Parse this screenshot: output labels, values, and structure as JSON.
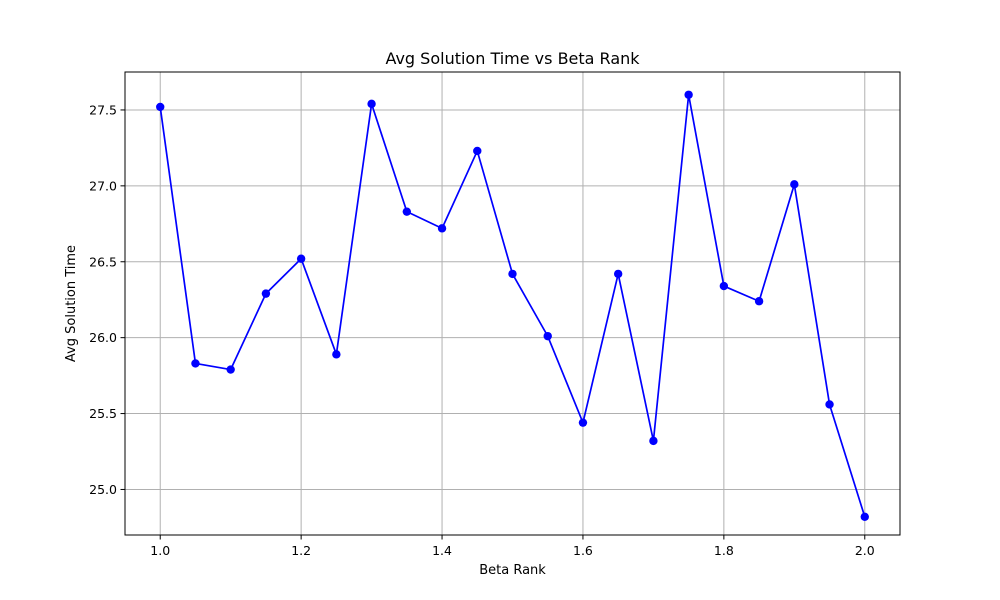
{
  "chart_data": {
    "type": "line",
    "title": "Avg Solution Time vs Beta Rank",
    "xlabel": "Beta Rank",
    "ylabel": "Avg Solution Time",
    "xlim": [
      0.95,
      2.05
    ],
    "ylim": [
      24.7,
      27.75
    ],
    "xticks": [
      1.0,
      1.2,
      1.4,
      1.6,
      1.8,
      2.0
    ],
    "xtick_labels": [
      "1.0",
      "1.2",
      "1.4",
      "1.6",
      "1.8",
      "2.0"
    ],
    "yticks": [
      25.0,
      25.5,
      26.0,
      26.5,
      27.0,
      27.5
    ],
    "ytick_labels": [
      "25.0",
      "25.5",
      "26.0",
      "26.5",
      "27.0",
      "27.5"
    ],
    "grid": true,
    "series": [
      {
        "color": "#0000ff",
        "marker": "circle",
        "x": [
          1.0,
          1.05,
          1.1,
          1.15,
          1.2,
          1.25,
          1.3,
          1.35,
          1.4,
          1.45,
          1.5,
          1.55,
          1.6,
          1.65,
          1.7,
          1.75,
          1.8,
          1.85,
          1.9,
          1.95,
          2.0
        ],
        "y": [
          27.52,
          25.83,
          25.79,
          26.29,
          26.52,
          25.89,
          27.54,
          26.83,
          26.72,
          27.23,
          26.42,
          26.01,
          25.44,
          26.42,
          25.32,
          27.6,
          26.34,
          26.24,
          27.01,
          25.56,
          24.82
        ]
      }
    ]
  }
}
